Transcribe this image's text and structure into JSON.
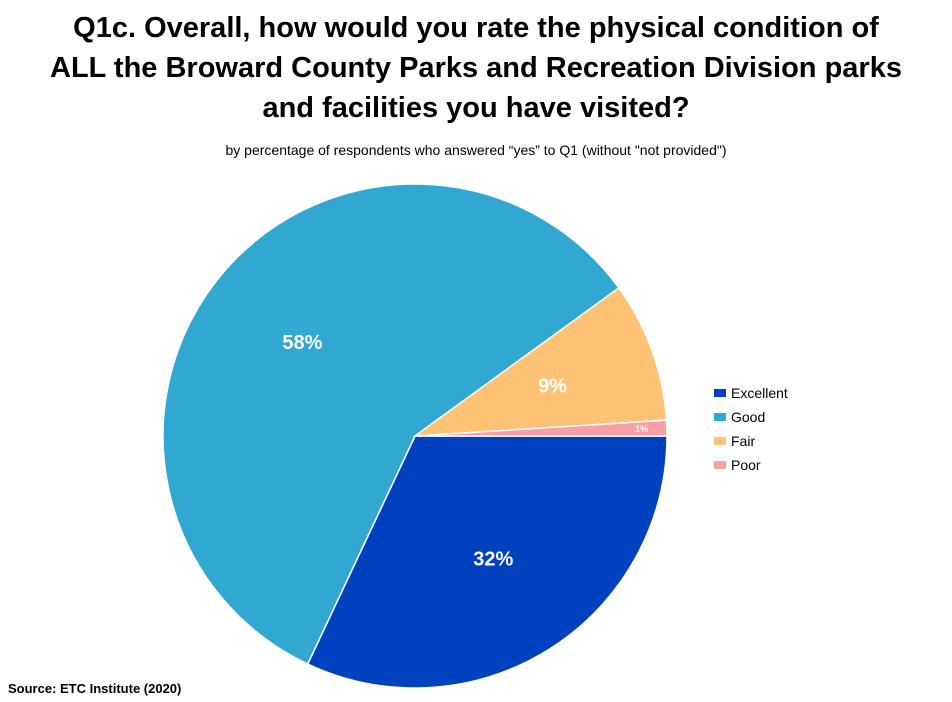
{
  "chart_data": {
    "type": "pie",
    "title_lines": [
      "Q1c. Overall, how would you rate the physical condition of",
      "ALL the Broward County Parks and Recreation Division parks",
      "and facilities you have visited?"
    ],
    "subtitle": "by percentage of respondents who answered “yes” to Q1 (without \"not provided\")",
    "categories": [
      "Excellent",
      "Good",
      "Fair",
      "Poor"
    ],
    "values": [
      32,
      58,
      9,
      1
    ],
    "labels": [
      "32%",
      "58%",
      "9%",
      "1%"
    ],
    "colors": [
      "#0041C0",
      "#31A8D1",
      "#FDC273",
      "#F7A1A6"
    ],
    "legend_position": "right"
  },
  "source": "Source:  ETC Institute (2020)"
}
